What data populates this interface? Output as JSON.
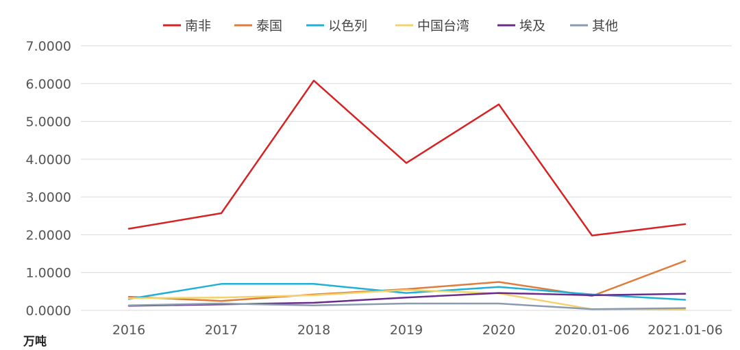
{
  "chart_data": {
    "type": "line",
    "title": "",
    "xlabel": "",
    "ylabel": "",
    "unit_label": "万吨",
    "ylim": [
      0,
      7
    ],
    "yticks": [
      "0.0000",
      "1.0000",
      "2.0000",
      "3.0000",
      "4.0000",
      "5.0000",
      "6.0000",
      "7.0000"
    ],
    "grid": true,
    "legend_position": "top-center",
    "categories": [
      "2016",
      "2017",
      "2018",
      "2019",
      "2020",
      "2020.01-06",
      "2021.01-06"
    ],
    "series": [
      {
        "name": "南非",
        "color": "#d62222",
        "values": [
          2.16,
          2.57,
          6.08,
          3.9,
          5.45,
          1.98,
          2.28
        ]
      },
      {
        "name": "泰国",
        "color": "#e07b39",
        "values": [
          0.36,
          0.25,
          0.42,
          0.56,
          0.75,
          0.38,
          1.31
        ]
      },
      {
        "name": "以色列",
        "color": "#1fb0d8",
        "values": [
          0.3,
          0.7,
          0.7,
          0.46,
          0.62,
          0.42,
          0.28
        ]
      },
      {
        "name": "中国台湾",
        "color": "#f2d36b",
        "values": [
          0.32,
          0.34,
          0.4,
          0.54,
          0.45,
          0.03,
          0.02
        ]
      },
      {
        "name": "埃及",
        "color": "#6a2c8c",
        "values": [
          0.12,
          0.16,
          0.2,
          0.34,
          0.46,
          0.4,
          0.44
        ]
      },
      {
        "name": "其他",
        "color": "#8a9bb0",
        "values": [
          0.13,
          0.18,
          0.13,
          0.18,
          0.18,
          0.03,
          0.06
        ]
      }
    ]
  }
}
